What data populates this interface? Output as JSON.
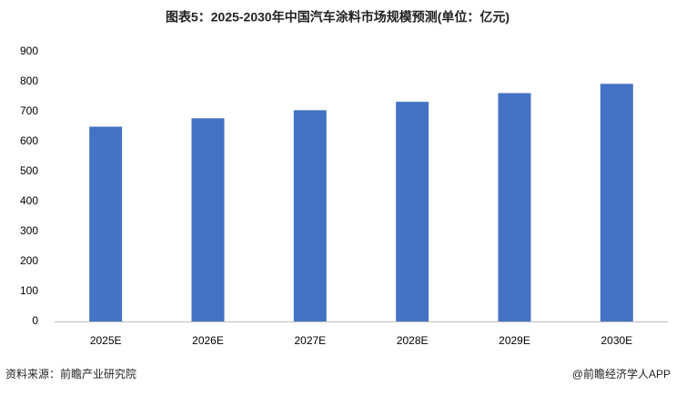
{
  "chart_data": {
    "type": "bar",
    "title": "图表5：2025-2030年中国汽车涂料市场规模预测(单位：亿元)",
    "categories": [
      "2025E",
      "2026E",
      "2027E",
      "2028E",
      "2029E",
      "2030E"
    ],
    "values": [
      650,
      678,
      705,
      733,
      762,
      793
    ],
    "color": "#4472c4",
    "ylim": [
      0,
      900
    ],
    "yticks": [
      0,
      100,
      200,
      300,
      400,
      500,
      600,
      700,
      800,
      900
    ],
    "grid": false
  },
  "footer": {
    "source": "资料来源：前瞻产业研究院",
    "credit": "@前瞻经济学人APP"
  }
}
